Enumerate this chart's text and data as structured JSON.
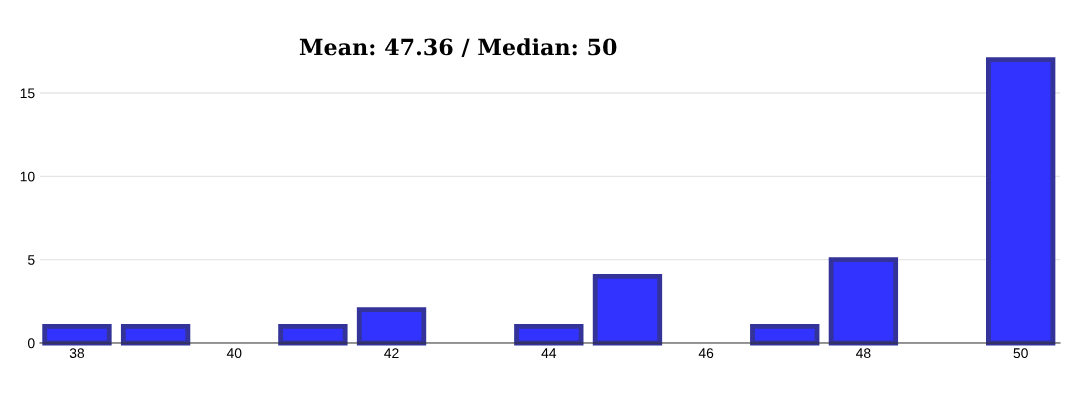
{
  "chart_data": {
    "type": "bar",
    "title": "Mean: 47.36 / Median: 50",
    "x": [
      38,
      39,
      40,
      41,
      42,
      43,
      44,
      45,
      46,
      47,
      48,
      49,
      50
    ],
    "values": [
      1,
      1,
      0,
      1,
      2,
      0,
      1,
      4,
      0,
      1,
      5,
      0,
      17
    ],
    "color": "#3333ff",
    "xlim": [
      37.53,
      50.5
    ],
    "xticks": [
      38,
      40,
      42,
      44,
      46,
      48,
      50
    ],
    "ylim": [
      0,
      17
    ],
    "yticks": [
      0,
      5,
      10,
      15
    ],
    "grid": "y",
    "legend": false
  }
}
